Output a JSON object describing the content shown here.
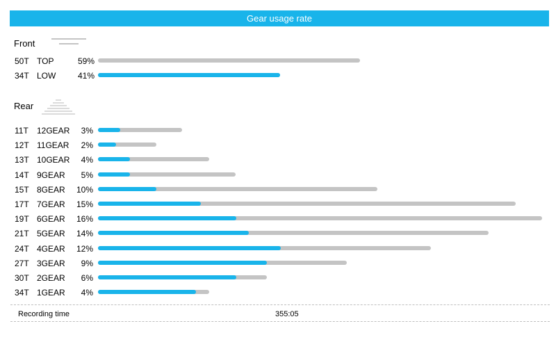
{
  "header": {
    "title": "Gear usage rate"
  },
  "front": {
    "title": "Front",
    "icon": "front-chainring-icon",
    "rows": [
      {
        "tooth": "50T",
        "gear": "TOP",
        "percent": "59%",
        "track_fraction": 0.59,
        "fill_fraction": 0.0
      },
      {
        "tooth": "34T",
        "gear": "LOW",
        "percent": "41%",
        "track_fraction": 0.41,
        "fill_fraction": 0.41
      }
    ]
  },
  "rear": {
    "title": "Rear",
    "icon": "rear-cassette-icon",
    "rows": [
      {
        "tooth": "11T",
        "gear": "12GEAR",
        "percent": "3%",
        "track_fraction": 0.19,
        "fill_fraction": 0.05
      },
      {
        "tooth": "12T",
        "gear": "11GEAR",
        "percent": "2%",
        "track_fraction": 0.131,
        "fill_fraction": 0.041
      },
      {
        "tooth": "13T",
        "gear": "10GEAR",
        "percent": "4%",
        "track_fraction": 0.251,
        "fill_fraction": 0.072
      },
      {
        "tooth": "14T",
        "gear": "9GEAR",
        "percent": "5%",
        "track_fraction": 0.31,
        "fill_fraction": 0.072
      },
      {
        "tooth": "15T",
        "gear": "8GEAR",
        "percent": "10%",
        "track_fraction": 0.629,
        "fill_fraction": 0.132
      },
      {
        "tooth": "17T",
        "gear": "7GEAR",
        "percent": "15%",
        "track_fraction": 0.941,
        "fill_fraction": 0.232
      },
      {
        "tooth": "19T",
        "gear": "6GEAR",
        "percent": "16%",
        "track_fraction": 1.0,
        "fill_fraction": 0.311
      },
      {
        "tooth": "21T",
        "gear": "5GEAR",
        "percent": "14%",
        "track_fraction": 0.88,
        "fill_fraction": 0.34
      },
      {
        "tooth": "24T",
        "gear": "4GEAR",
        "percent": "12%",
        "track_fraction": 0.75,
        "fill_fraction": 0.412
      },
      {
        "tooth": "27T",
        "gear": "3GEAR",
        "percent": "9%",
        "track_fraction": 0.56,
        "fill_fraction": 0.381
      },
      {
        "tooth": "30T",
        "gear": "2GEAR",
        "percent": "6%",
        "track_fraction": 0.38,
        "fill_fraction": 0.311
      },
      {
        "tooth": "34T",
        "gear": "1GEAR",
        "percent": "4%",
        "track_fraction": 0.25,
        "fill_fraction": 0.22
      }
    ]
  },
  "footer": {
    "label": "Recording time",
    "value": "355:05"
  },
  "colors": {
    "accent": "#19b4ea",
    "track": "#c4c4c4"
  }
}
